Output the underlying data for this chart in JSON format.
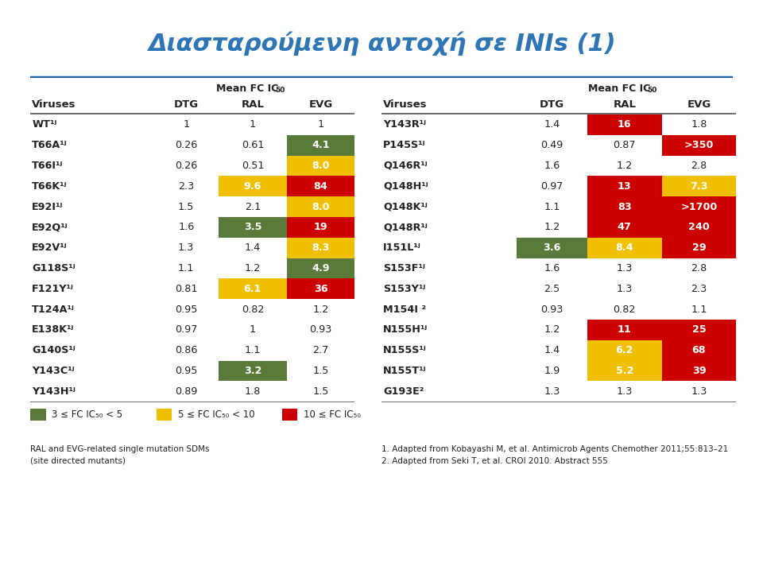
{
  "title": "Διασταρούμενη αντοχή σε INIs (1)",
  "title_color": "#2e75b6",
  "background_color": "#ffffff",
  "left_table": {
    "viruses": [
      "WT¹ʲ",
      "T66A¹ʲ",
      "T66I¹ʲ",
      "T66K¹ʲ",
      "E92I¹ʲ",
      "E92Q¹ʲ",
      "E92V¹ʲ",
      "G118S¹ʲ",
      "F121Y¹ʲ",
      "T124A¹ʲ",
      "E138K¹ʲ",
      "G140S¹ʲ",
      "Y143C¹ʲ",
      "Y143H¹ʲ"
    ],
    "DTG": [
      "1",
      "0.26",
      "0.26",
      "2.3",
      "1.5",
      "1.6",
      "1.3",
      "1.1",
      "0.81",
      "0.95",
      "0.97",
      "0.86",
      "0.95",
      "0.89"
    ],
    "RAL": [
      "1",
      "0.61",
      "0.51",
      "9.6",
      "2.1",
      "3.5",
      "1.4",
      "1.2",
      "6.1",
      "0.82",
      "1",
      "1.1",
      "3.2",
      "1.8"
    ],
    "EVG": [
      "1",
      "4.1",
      "8.0",
      "84",
      "8.0",
      "19",
      "8.3",
      "4.9",
      "36",
      "1.2",
      "0.93",
      "2.7",
      "1.5",
      "1.5"
    ],
    "DTG_colors": [
      "none",
      "none",
      "none",
      "none",
      "none",
      "none",
      "none",
      "none",
      "none",
      "none",
      "none",
      "none",
      "none",
      "none"
    ],
    "RAL_colors": [
      "none",
      "none",
      "none",
      "#f0c000",
      "none",
      "#5a7a3a",
      "none",
      "none",
      "#f0c000",
      "none",
      "none",
      "none",
      "#5a7a3a",
      "none"
    ],
    "EVG_colors": [
      "none",
      "#5a7a3a",
      "#f0c000",
      "#cc0000",
      "#f0c000",
      "#cc0000",
      "#f0c000",
      "#5a7a3a",
      "#cc0000",
      "none",
      "none",
      "none",
      "none",
      "none"
    ]
  },
  "right_table": {
    "viruses": [
      "Y143R¹ʲ",
      "P145S¹ʲ",
      "Q146R¹ʲ",
      "Q148H¹ʲ",
      "Q148K¹ʲ",
      "Q148R¹ʲ",
      "I151L¹ʲ",
      "S153F¹ʲ",
      "S153Y¹ʲ",
      "M154I ²",
      "N155H¹ʲ",
      "N155S¹ʲ",
      "N155T¹ʲ",
      "G193E²"
    ],
    "DTG": [
      "1.4",
      "0.49",
      "1.6",
      "0.97",
      "1.1",
      "1.2",
      "3.6",
      "1.6",
      "2.5",
      "0.93",
      "1.2",
      "1.4",
      "1.9",
      "1.3"
    ],
    "RAL": [
      "16",
      "0.87",
      "1.2",
      "13",
      "83",
      "47",
      "8.4",
      "1.3",
      "1.3",
      "0.82",
      "11",
      "6.2",
      "5.2",
      "1.3"
    ],
    "EVG": [
      "1.8",
      ">350",
      "2.8",
      "7.3",
      ">1700",
      "240",
      "29",
      "2.8",
      "2.3",
      "1.1",
      "25",
      "68",
      "39",
      "1.3"
    ],
    "DTG_colors": [
      "none",
      "none",
      "none",
      "none",
      "none",
      "none",
      "#5a7a3a",
      "none",
      "none",
      "none",
      "none",
      "none",
      "none",
      "none"
    ],
    "RAL_colors": [
      "#cc0000",
      "none",
      "none",
      "#cc0000",
      "#cc0000",
      "#cc0000",
      "#f0c000",
      "none",
      "none",
      "none",
      "#cc0000",
      "#f0c000",
      "#f0c000",
      "none"
    ],
    "EVG_colors": [
      "none",
      "#cc0000",
      "none",
      "#f0c000",
      "#cc0000",
      "#cc0000",
      "#cc0000",
      "none",
      "none",
      "none",
      "#cc0000",
      "#cc0000",
      "#cc0000",
      "none"
    ]
  },
  "legend": [
    {
      "color": "#5a7a3a",
      "text": "3 ≤ FC IC₅₀ < 5"
    },
    {
      "color": "#f0c000",
      "text": "5 ≤ FC IC₅₀ < 10"
    },
    {
      "color": "#cc0000",
      "text": "10 ≤ FC IC₅₀"
    }
  ],
  "footnote_left": "RAL and EVG-related single mutation SDMs\n(site directed mutants)",
  "footnote_right": "1. Adapted from Kobayashi M, et al. Antimicrob Agents Chemother 2011;55:813–21\n2. Adapted from Seki T, et al. CROI 2010. Abstract 555"
}
